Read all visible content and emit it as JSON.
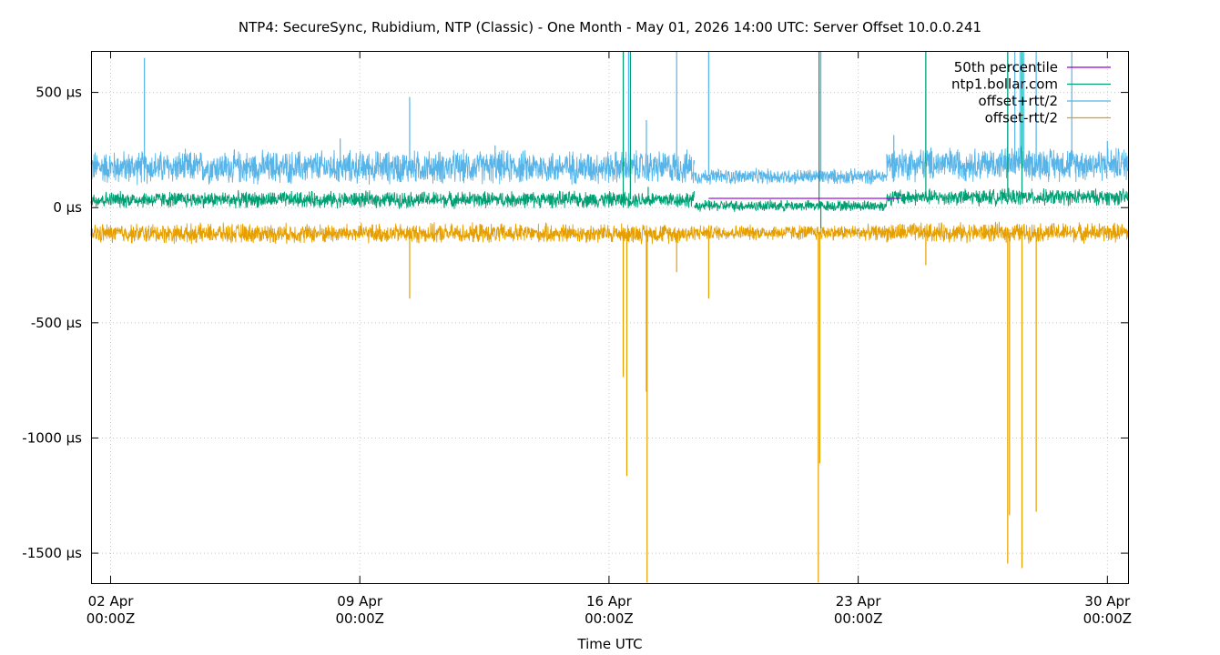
{
  "chart_data": {
    "type": "line",
    "title": "NTP4: SecureSync, Rubidium, NTP (Classic) - One Month - May 01, 2026 14:00 UTC: Server Offset 10.0.0.241",
    "xlabel": "Time UTC",
    "ylabel": "",
    "x_unit": "days since 01 Apr 2026 00:00Z",
    "xlim": [
      1.45,
      30.58
    ],
    "ylim": [
      -1630,
      680
    ],
    "x_ticks": [
      {
        "value": 2,
        "label": [
          "02 Apr",
          "00:00Z"
        ]
      },
      {
        "value": 9,
        "label": [
          "09 Apr",
          "00:00Z"
        ]
      },
      {
        "value": 16,
        "label": [
          "16 Apr",
          "00:00Z"
        ]
      },
      {
        "value": 23,
        "label": [
          "23 Apr",
          "00:00Z"
        ]
      },
      {
        "value": 30,
        "label": [
          "30 Apr",
          "00:00Z"
        ]
      }
    ],
    "y_ticks": [
      {
        "value": 500,
        "label": "500 µs"
      },
      {
        "value": 0,
        "label": "0 µs"
      },
      {
        "value": -500,
        "label": "-500 µs"
      },
      {
        "value": -1000,
        "label": "-1000 µs"
      },
      {
        "value": -1500,
        "label": "-1500 µs"
      }
    ],
    "grid": true,
    "legend_position": "top-right",
    "series": [
      {
        "name": "50th percentile",
        "color": "#9400d3",
        "points": [
          [
            18.8,
            40
          ],
          [
            24.2,
            40
          ]
        ]
      },
      {
        "name": "ntp1.bollar.com",
        "color": "#009e73",
        "segments": [
          {
            "x": [
              1.45,
              18.4
            ],
            "mean": 35,
            "noise": 32
          },
          {
            "x": [
              18.4,
              23.8
            ],
            "mean": 8,
            "noise": 22
          },
          {
            "x": [
              23.8,
              30.58
            ],
            "mean": 45,
            "noise": 32
          }
        ],
        "spikes": [
          [
            16.4,
            680
          ],
          [
            16.6,
            680
          ],
          [
            17.1,
            90
          ],
          [
            21.9,
            680
          ],
          [
            21.95,
            -90
          ],
          [
            24.9,
            680
          ],
          [
            27.2,
            680
          ],
          [
            27.6,
            680
          ]
        ]
      },
      {
        "name": "offset+rtt/2",
        "color": "#56b4e9",
        "segments": [
          {
            "x": [
              1.45,
              18.4
            ],
            "mean": 175,
            "noise": 65
          },
          {
            "x": [
              18.4,
              23.8
            ],
            "mean": 135,
            "noise": 30
          },
          {
            "x": [
              23.8,
              30.58
            ],
            "mean": 190,
            "noise": 65
          }
        ],
        "spikes": [
          [
            2.95,
            650
          ],
          [
            8.45,
            300
          ],
          [
            10.4,
            480
          ],
          [
            12.8,
            270
          ],
          [
            16.4,
            680
          ],
          [
            16.55,
            680
          ],
          [
            17.05,
            380
          ],
          [
            17.9,
            680
          ],
          [
            18.8,
            680
          ],
          [
            21.9,
            680
          ],
          [
            21.95,
            680
          ],
          [
            24.0,
            315
          ],
          [
            24.9,
            680
          ],
          [
            27.2,
            680
          ],
          [
            27.4,
            680
          ],
          [
            27.55,
            680
          ],
          [
            27.65,
            680
          ],
          [
            28.0,
            680
          ],
          [
            29.0,
            680
          ],
          [
            30.0,
            290
          ]
        ]
      },
      {
        "name": "offset-rtt/2",
        "color": "#e69f00",
        "segments": [
          {
            "x": [
              1.45,
              18.4
            ],
            "mean": -112,
            "noise": 38
          },
          {
            "x": [
              18.4,
              23.8
            ],
            "mean": -108,
            "noise": 30
          },
          {
            "x": [
              23.8,
              30.58
            ],
            "mean": -108,
            "noise": 38
          }
        ],
        "spikes": [
          [
            10.4,
            -395
          ],
          [
            16.4,
            -735
          ],
          [
            16.5,
            -1165
          ],
          [
            17.05,
            -800
          ],
          [
            17.07,
            -1630
          ],
          [
            17.9,
            -280
          ],
          [
            18.8,
            -395
          ],
          [
            21.88,
            -1630
          ],
          [
            21.92,
            -1110
          ],
          [
            24.9,
            -250
          ],
          [
            27.2,
            -1545
          ],
          [
            27.25,
            -1335
          ],
          [
            27.6,
            -1565
          ],
          [
            28.0,
            -1320
          ]
        ]
      }
    ]
  }
}
